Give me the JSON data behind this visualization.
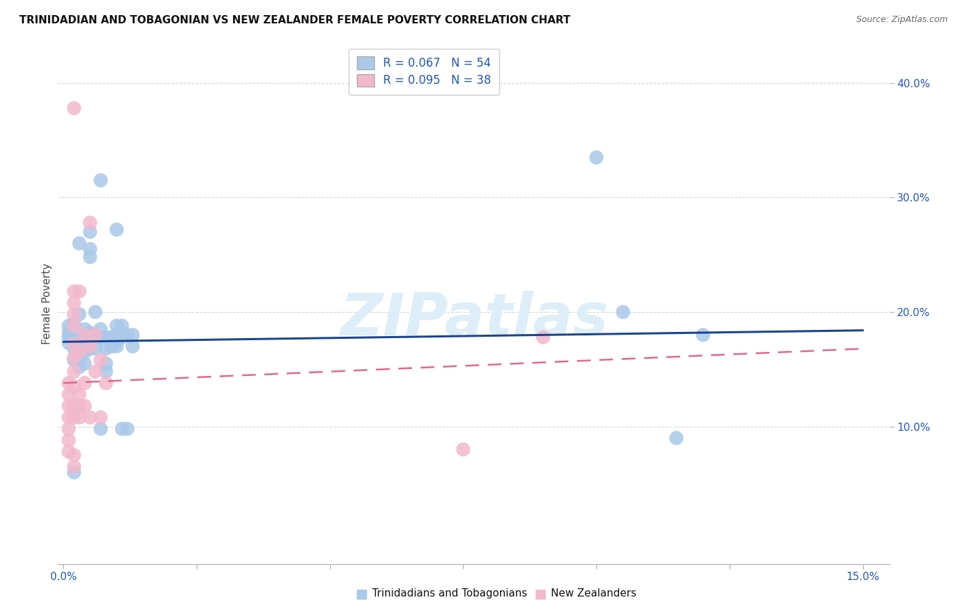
{
  "title": "TRINIDADIAN AND TOBAGONIAN VS NEW ZEALANDER FEMALE POVERTY CORRELATION CHART",
  "source": "Source: ZipAtlas.com",
  "ylabel": "Female Poverty",
  "xlim": [
    -0.001,
    0.155
  ],
  "ylim": [
    -0.02,
    0.435
  ],
  "xticks": [
    0.0,
    0.025,
    0.05,
    0.075,
    0.1,
    0.125,
    0.15
  ],
  "yticks": [
    0.1,
    0.2,
    0.3,
    0.4
  ],
  "legend_r1": "R = 0.067   N = 54",
  "legend_r2": "R = 0.095   N = 38",
  "blue_color": "#aac8e8",
  "pink_color": "#f2b8cc",
  "blue_line_color": "#1a4490",
  "pink_line_color": "#e06888",
  "watermark": "ZIPatlas",
  "watermark_color": "#ddeef8",
  "blue_points": [
    [
      0.001,
      0.178
    ],
    [
      0.001,
      0.173
    ],
    [
      0.001,
      0.182
    ],
    [
      0.001,
      0.188
    ],
    [
      0.002,
      0.19
    ],
    [
      0.002,
      0.168
    ],
    [
      0.002,
      0.158
    ],
    [
      0.002,
      0.175
    ],
    [
      0.003,
      0.198
    ],
    [
      0.003,
      0.178
    ],
    [
      0.003,
      0.168
    ],
    [
      0.003,
      0.16
    ],
    [
      0.003,
      0.152
    ],
    [
      0.003,
      0.26
    ],
    [
      0.004,
      0.185
    ],
    [
      0.004,
      0.175
    ],
    [
      0.004,
      0.165
    ],
    [
      0.004,
      0.155
    ],
    [
      0.005,
      0.27
    ],
    [
      0.005,
      0.255
    ],
    [
      0.005,
      0.248
    ],
    [
      0.005,
      0.182
    ],
    [
      0.005,
      0.175
    ],
    [
      0.005,
      0.168
    ],
    [
      0.006,
      0.2
    ],
    [
      0.006,
      0.175
    ],
    [
      0.006,
      0.168
    ],
    [
      0.007,
      0.315
    ],
    [
      0.007,
      0.185
    ],
    [
      0.007,
      0.178
    ],
    [
      0.007,
      0.098
    ],
    [
      0.008,
      0.178
    ],
    [
      0.008,
      0.168
    ],
    [
      0.008,
      0.155
    ],
    [
      0.008,
      0.148
    ],
    [
      0.009,
      0.178
    ],
    [
      0.009,
      0.17
    ],
    [
      0.01,
      0.272
    ],
    [
      0.01,
      0.188
    ],
    [
      0.01,
      0.18
    ],
    [
      0.01,
      0.175
    ],
    [
      0.01,
      0.17
    ],
    [
      0.011,
      0.188
    ],
    [
      0.011,
      0.178
    ],
    [
      0.011,
      0.098
    ],
    [
      0.012,
      0.18
    ],
    [
      0.012,
      0.098
    ],
    [
      0.013,
      0.18
    ],
    [
      0.013,
      0.17
    ],
    [
      0.1,
      0.335
    ],
    [
      0.105,
      0.2
    ],
    [
      0.115,
      0.09
    ],
    [
      0.12,
      0.18
    ],
    [
      0.002,
      0.06
    ]
  ],
  "pink_points": [
    [
      0.001,
      0.138
    ],
    [
      0.001,
      0.128
    ],
    [
      0.001,
      0.118
    ],
    [
      0.001,
      0.108
    ],
    [
      0.001,
      0.098
    ],
    [
      0.001,
      0.088
    ],
    [
      0.001,
      0.078
    ],
    [
      0.002,
      0.378
    ],
    [
      0.002,
      0.218
    ],
    [
      0.002,
      0.208
    ],
    [
      0.002,
      0.198
    ],
    [
      0.002,
      0.188
    ],
    [
      0.002,
      0.172
    ],
    [
      0.002,
      0.16
    ],
    [
      0.002,
      0.148
    ],
    [
      0.002,
      0.135
    ],
    [
      0.002,
      0.118
    ],
    [
      0.002,
      0.108
    ],
    [
      0.002,
      0.075
    ],
    [
      0.002,
      0.065
    ],
    [
      0.003,
      0.218
    ],
    [
      0.003,
      0.165
    ],
    [
      0.003,
      0.128
    ],
    [
      0.003,
      0.118
    ],
    [
      0.003,
      0.108
    ],
    [
      0.004,
      0.18
    ],
    [
      0.004,
      0.138
    ],
    [
      0.004,
      0.118
    ],
    [
      0.005,
      0.278
    ],
    [
      0.005,
      0.17
    ],
    [
      0.005,
      0.108
    ],
    [
      0.006,
      0.18
    ],
    [
      0.006,
      0.148
    ],
    [
      0.007,
      0.158
    ],
    [
      0.007,
      0.108
    ],
    [
      0.008,
      0.138
    ],
    [
      0.09,
      0.178
    ],
    [
      0.075,
      0.08
    ]
  ],
  "blue_trend_x": [
    0.0,
    0.15
  ],
  "blue_trend_y": [
    0.174,
    0.184
  ],
  "pink_trend_x": [
    0.0,
    0.15
  ],
  "pink_trend_y": [
    0.138,
    0.168
  ],
  "figsize": [
    14.06,
    8.92
  ],
  "dpi": 100,
  "bg_color": "#ffffff",
  "grid_color": "#d0d0d0",
  "bottom_label1": "Trinidadians and Tobagonians",
  "bottom_label2": "New Zealanders"
}
